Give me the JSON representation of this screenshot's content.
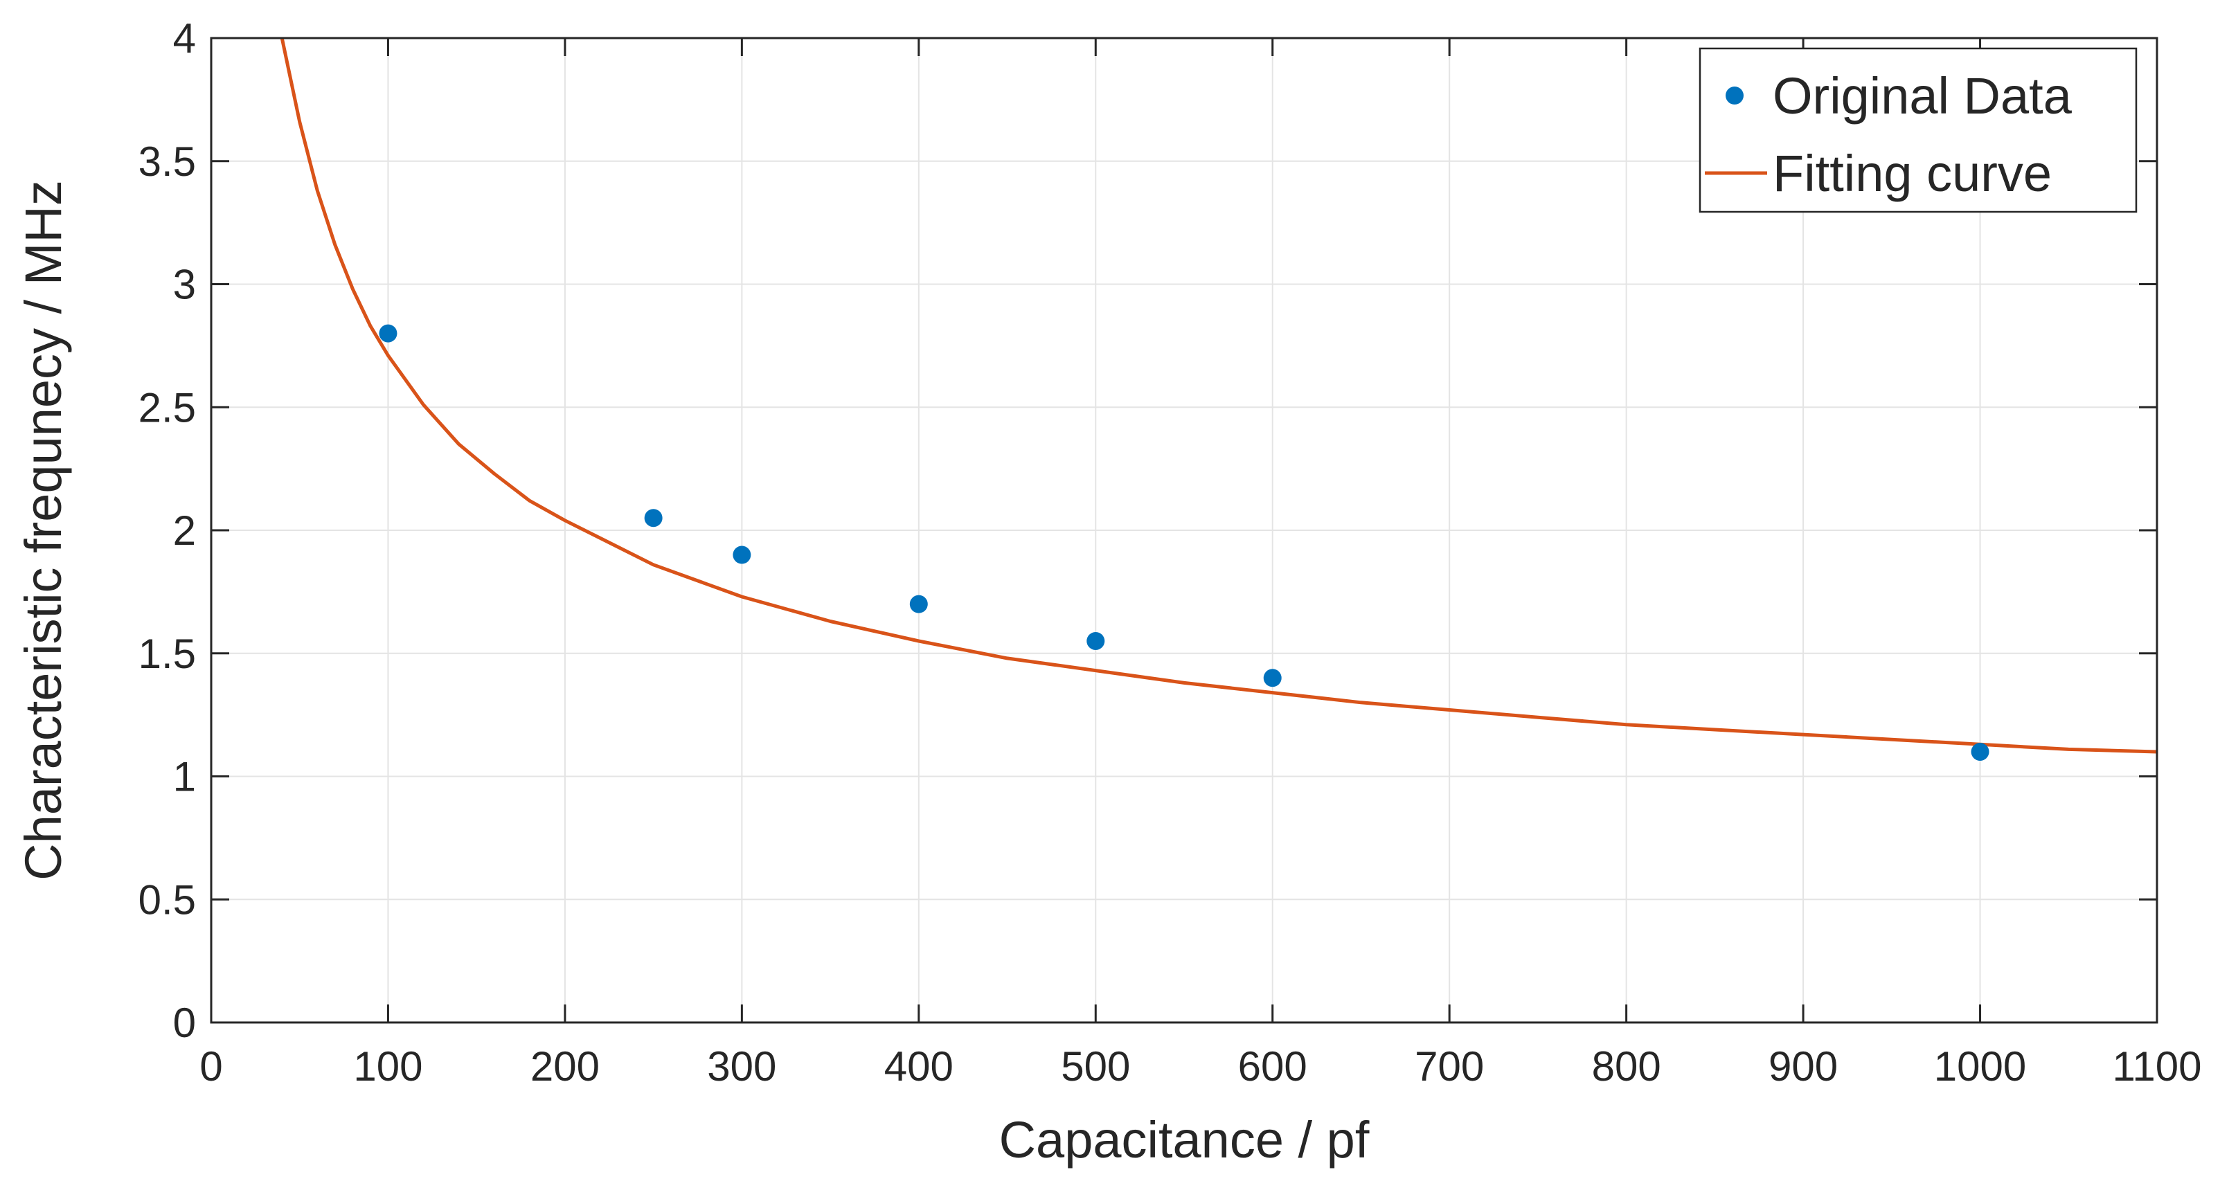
{
  "chart_data": {
    "type": "scatter",
    "xlabel": "Capacitance / pf",
    "ylabel": "Characteristic frequnecy / MHz",
    "xlim": [
      0,
      1100
    ],
    "ylim": [
      0,
      4
    ],
    "xticks": [
      0,
      100,
      200,
      300,
      400,
      500,
      600,
      700,
      800,
      900,
      1000,
      1100
    ],
    "yticks": [
      0,
      0.5,
      1,
      1.5,
      2,
      2.5,
      3,
      3.5,
      4
    ],
    "grid": true,
    "legend_position": "top-right",
    "series": [
      {
        "name": "Original Data",
        "kind": "scatter",
        "color": "#0072BD",
        "x": [
          100,
          250,
          300,
          400,
          500,
          600,
          1000
        ],
        "y": [
          2.8,
          2.05,
          1.9,
          1.7,
          1.55,
          1.4,
          1.1
        ]
      },
      {
        "name": "Fitting curve",
        "kind": "line",
        "color": "#D95319",
        "x": [
          40,
          50,
          60,
          70,
          80,
          90,
          100,
          120,
          140,
          160,
          180,
          200,
          250,
          300,
          350,
          400,
          450,
          500,
          550,
          600,
          650,
          700,
          750,
          800,
          850,
          900,
          950,
          1000,
          1050,
          1100
        ],
        "y": [
          4.0,
          3.66,
          3.38,
          3.16,
          2.98,
          2.83,
          2.71,
          2.51,
          2.35,
          2.23,
          2.12,
          2.04,
          1.86,
          1.73,
          1.63,
          1.55,
          1.48,
          1.43,
          1.38,
          1.34,
          1.3,
          1.27,
          1.24,
          1.21,
          1.19,
          1.17,
          1.15,
          1.13,
          1.11,
          1.1
        ]
      }
    ]
  }
}
